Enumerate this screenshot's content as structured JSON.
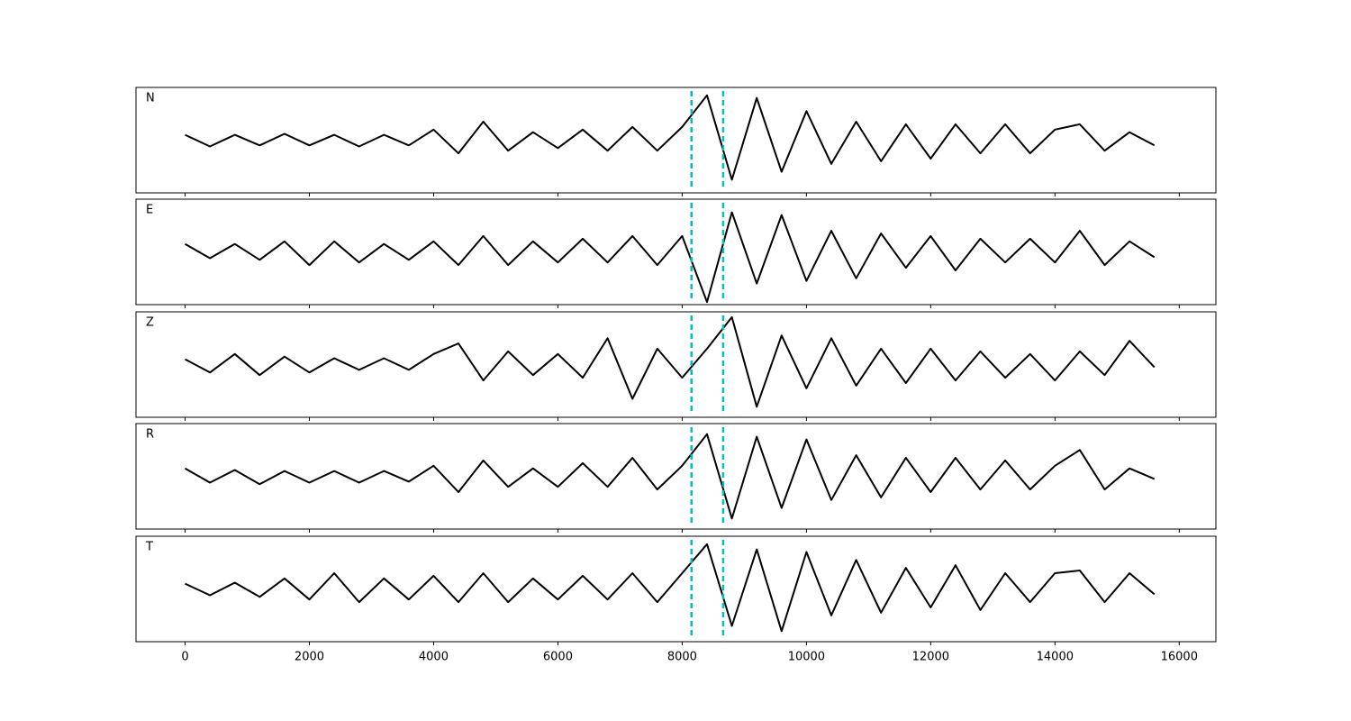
{
  "chart_data": [
    {
      "type": "line",
      "label": "N",
      "color": "#000000",
      "marker_color": "#00bfbf",
      "x": [
        0,
        400,
        800,
        1200,
        1600,
        2000,
        2400,
        2800,
        3200,
        3600,
        4000,
        4400,
        4800,
        5200,
        5600,
        6000,
        6400,
        6800,
        7200,
        7600,
        8000,
        8400,
        8800,
        9200,
        9600,
        10000,
        10400,
        10800,
        11200,
        11600,
        12000,
        12400,
        12800,
        13200,
        13600,
        14000,
        14400,
        14800,
        15200,
        15600
      ],
      "values": [
        0.1,
        -0.12,
        0.1,
        -0.1,
        0.12,
        -0.1,
        0.1,
        -0.12,
        0.1,
        -0.1,
        0.2,
        -0.25,
        0.35,
        -0.2,
        0.15,
        -0.15,
        0.2,
        -0.2,
        0.25,
        -0.2,
        0.25,
        0.85,
        -0.75,
        0.8,
        -0.6,
        0.55,
        -0.45,
        0.35,
        -0.4,
        0.3,
        -0.35,
        0.3,
        -0.25,
        0.3,
        -0.25,
        0.2,
        0.3,
        -0.2,
        0.15,
        -0.1
      ],
      "markers": [
        8150,
        8660
      ],
      "xlim": [
        -790,
        16590
      ],
      "ylim": [
        -1,
        1
      ],
      "xticks": [
        0,
        2000,
        4000,
        6000,
        8000,
        10000,
        12000,
        14000,
        16000
      ]
    },
    {
      "type": "line",
      "label": "E",
      "color": "#000000",
      "marker_color": "#00bfbf",
      "x": [
        0,
        400,
        800,
        1200,
        1600,
        2000,
        2400,
        2800,
        3200,
        3600,
        4000,
        4400,
        4800,
        5200,
        5600,
        6000,
        6400,
        6800,
        7200,
        7600,
        8000,
        8400,
        8800,
        9200,
        9600,
        10000,
        10400,
        10800,
        11200,
        11600,
        12000,
        12400,
        12800,
        13200,
        13600,
        14000,
        14400,
        14800,
        15200,
        15600
      ],
      "values": [
        0.15,
        -0.12,
        0.15,
        -0.15,
        0.2,
        -0.25,
        0.2,
        -0.2,
        0.15,
        -0.15,
        0.2,
        -0.25,
        0.3,
        -0.25,
        0.2,
        -0.2,
        0.25,
        -0.2,
        0.3,
        -0.25,
        0.3,
        -0.95,
        0.75,
        -0.6,
        0.7,
        -0.55,
        0.4,
        -0.5,
        0.35,
        -0.3,
        0.3,
        -0.35,
        0.25,
        -0.2,
        0.25,
        -0.2,
        0.4,
        -0.25,
        0.2,
        -0.1
      ],
      "markers": [
        8150,
        8660
      ],
      "xlim": [
        -790,
        16590
      ],
      "ylim": [
        -1,
        1
      ],
      "xticks": [
        0,
        2000,
        4000,
        6000,
        8000,
        10000,
        12000,
        14000,
        16000
      ]
    },
    {
      "type": "line",
      "label": "Z",
      "color": "#000000",
      "marker_color": "#00bfbf",
      "x": [
        0,
        400,
        800,
        1200,
        1600,
        2000,
        2400,
        2800,
        3200,
        3600,
        4000,
        4400,
        4800,
        5200,
        5600,
        6000,
        6400,
        6800,
        7200,
        7600,
        8000,
        8400,
        8800,
        9200,
        9600,
        10000,
        10400,
        10800,
        11200,
        11600,
        12000,
        12400,
        12800,
        13200,
        13600,
        14000,
        14400,
        14800,
        15200,
        15600
      ],
      "values": [
        0.1,
        -0.15,
        0.2,
        -0.2,
        0.15,
        -0.15,
        0.12,
        -0.1,
        0.12,
        -0.1,
        0.2,
        0.4,
        -0.3,
        0.25,
        -0.2,
        0.2,
        -0.25,
        0.5,
        -0.65,
        0.3,
        -0.25,
        0.3,
        0.9,
        -0.8,
        0.55,
        -0.45,
        0.5,
        -0.4,
        0.3,
        -0.35,
        0.3,
        -0.3,
        0.25,
        -0.25,
        0.2,
        -0.3,
        0.25,
        -0.2,
        0.45,
        -0.05
      ],
      "markers": [
        8150,
        8660
      ],
      "xlim": [
        -790,
        16590
      ],
      "ylim": [
        -1,
        1
      ],
      "xticks": [
        0,
        2000,
        4000,
        6000,
        8000,
        10000,
        12000,
        14000,
        16000
      ]
    },
    {
      "type": "line",
      "label": "R",
      "color": "#000000",
      "marker_color": "#00bfbf",
      "x": [
        0,
        400,
        800,
        1200,
        1600,
        2000,
        2400,
        2800,
        3200,
        3600,
        4000,
        4400,
        4800,
        5200,
        5600,
        6000,
        6400,
        6800,
        7200,
        7600,
        8000,
        8400,
        8800,
        9200,
        9600,
        10000,
        10400,
        10800,
        11200,
        11600,
        12000,
        12400,
        12800,
        13200,
        13600,
        14000,
        14400,
        14800,
        15200,
        15600
      ],
      "values": [
        0.15,
        -0.12,
        0.12,
        -0.15,
        0.1,
        -0.12,
        0.1,
        -0.12,
        0.1,
        -0.1,
        0.2,
        -0.3,
        0.3,
        -0.2,
        0.15,
        -0.2,
        0.25,
        -0.2,
        0.35,
        -0.25,
        0.2,
        0.8,
        -0.8,
        0.75,
        -0.6,
        0.7,
        -0.45,
        0.4,
        -0.4,
        0.35,
        -0.3,
        0.35,
        -0.25,
        0.3,
        -0.25,
        0.2,
        0.5,
        -0.25,
        0.15,
        -0.05
      ],
      "markers": [
        8150,
        8660
      ],
      "xlim": [
        -790,
        16590
      ],
      "ylim": [
        -1,
        1
      ],
      "xticks": [
        0,
        2000,
        4000,
        6000,
        8000,
        10000,
        12000,
        14000,
        16000
      ]
    },
    {
      "type": "line",
      "label": "T",
      "color": "#000000",
      "marker_color": "#00bfbf",
      "x": [
        0,
        400,
        800,
        1200,
        1600,
        2000,
        2400,
        2800,
        3200,
        3600,
        4000,
        4400,
        4800,
        5200,
        5600,
        6000,
        6400,
        6800,
        7200,
        7600,
        8000,
        8400,
        8800,
        9200,
        9600,
        10000,
        10400,
        10800,
        11200,
        11600,
        12000,
        12400,
        12800,
        13200,
        13600,
        14000,
        14400,
        14800,
        15200,
        15600
      ],
      "values": [
        0.1,
        -0.12,
        0.12,
        -0.15,
        0.2,
        -0.2,
        0.3,
        -0.25,
        0.2,
        -0.2,
        0.25,
        -0.25,
        0.3,
        -0.25,
        0.2,
        -0.2,
        0.25,
        -0.2,
        0.3,
        -0.25,
        0.3,
        0.85,
        -0.7,
        0.75,
        -0.8,
        0.7,
        -0.5,
        0.55,
        -0.45,
        0.4,
        -0.35,
        0.45,
        -0.4,
        0.3,
        -0.25,
        0.3,
        0.35,
        -0.25,
        0.3,
        -0.1
      ],
      "markers": [
        8150,
        8660
      ],
      "xlim": [
        -790,
        16590
      ],
      "ylim": [
        -1,
        1
      ],
      "xticks": [
        0,
        2000,
        4000,
        6000,
        8000,
        10000,
        12000,
        14000,
        16000
      ]
    }
  ]
}
